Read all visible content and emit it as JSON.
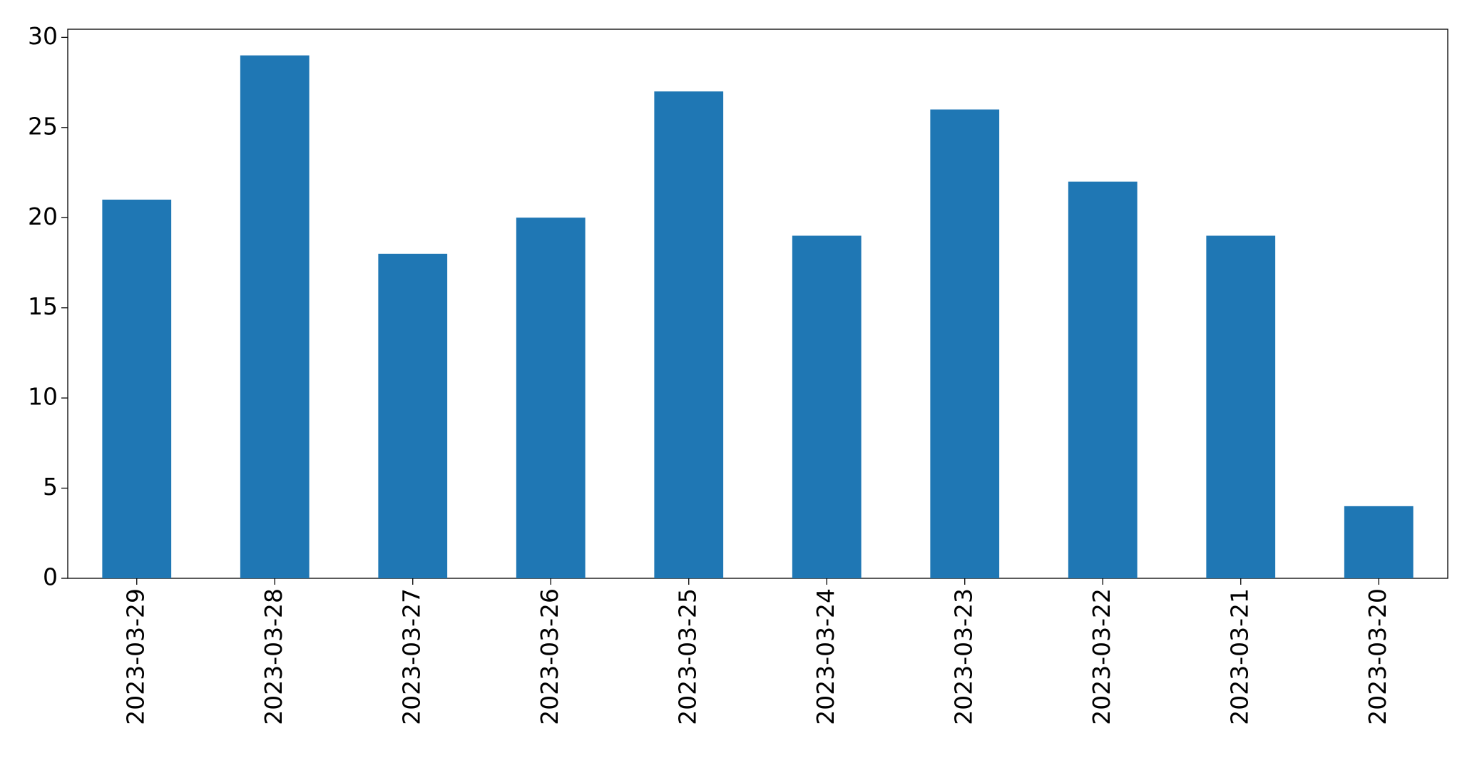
{
  "chart_data": {
    "type": "bar",
    "categories": [
      "2023-03-29",
      "2023-03-28",
      "2023-03-27",
      "2023-03-26",
      "2023-03-25",
      "2023-03-24",
      "2023-03-23",
      "2023-03-22",
      "2023-03-21",
      "2023-03-20"
    ],
    "values": [
      21,
      29,
      18,
      20,
      27,
      19,
      26,
      22,
      19,
      4
    ],
    "color": "#1f77b4",
    "ylim": [
      0,
      30.45
    ],
    "yticks": [
      0,
      5,
      10,
      15,
      20,
      25,
      30
    ],
    "grid": false
  }
}
